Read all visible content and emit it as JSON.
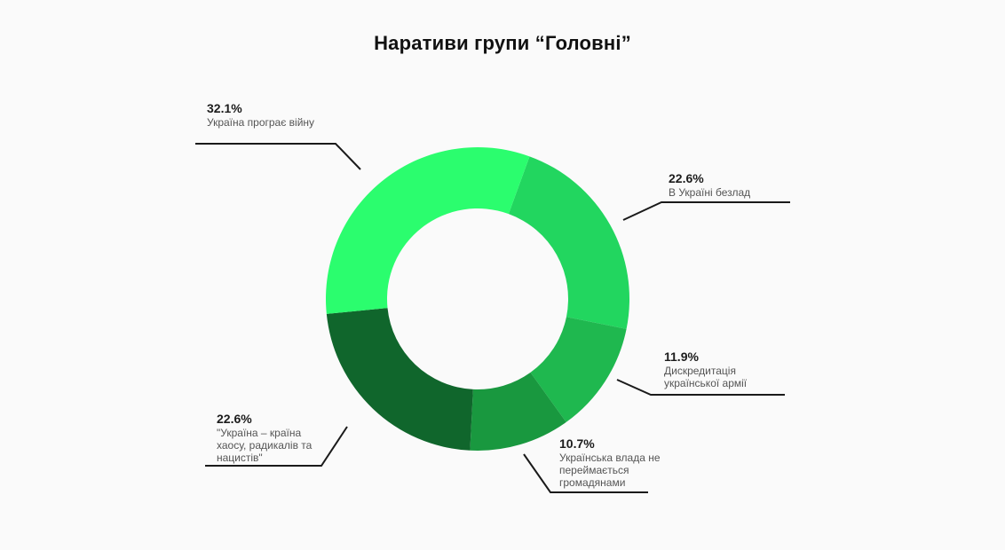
{
  "title": "Наративи групи “Головні”",
  "chart_data": {
    "type": "pie",
    "subtype": "donut",
    "title": "Наративи групи “Головні”",
    "categories": [
      "В Україні безлад",
      "Дискредитація української армії",
      "Українська влада не переймається громадянами",
      "\"Україна – країна хаосу, радикалів та нацистів\"",
      "Україна програє війну"
    ],
    "values": [
      22.6,
      11.9,
      10.7,
      22.6,
      32.1
    ],
    "unit": "%",
    "colors": [
      "#22d65f",
      "#1fb84f",
      "#19983f",
      "#10662c",
      "#2bfd6e"
    ],
    "start_angle_deg": 20,
    "direction": "clockwise"
  },
  "labels": [
    {
      "pct": "32.1%",
      "text": "Україна програє війну"
    },
    {
      "pct": "22.6%",
      "text": "В Україні безлад"
    },
    {
      "pct": "11.9%",
      "text": "Дискредитація української армії"
    },
    {
      "pct": "10.7%",
      "text": "Українська влада не переймається громадянами"
    },
    {
      "pct": "22.6%",
      "text": "\"Україна – країна хаосу, радикалів та нацистів\""
    }
  ]
}
